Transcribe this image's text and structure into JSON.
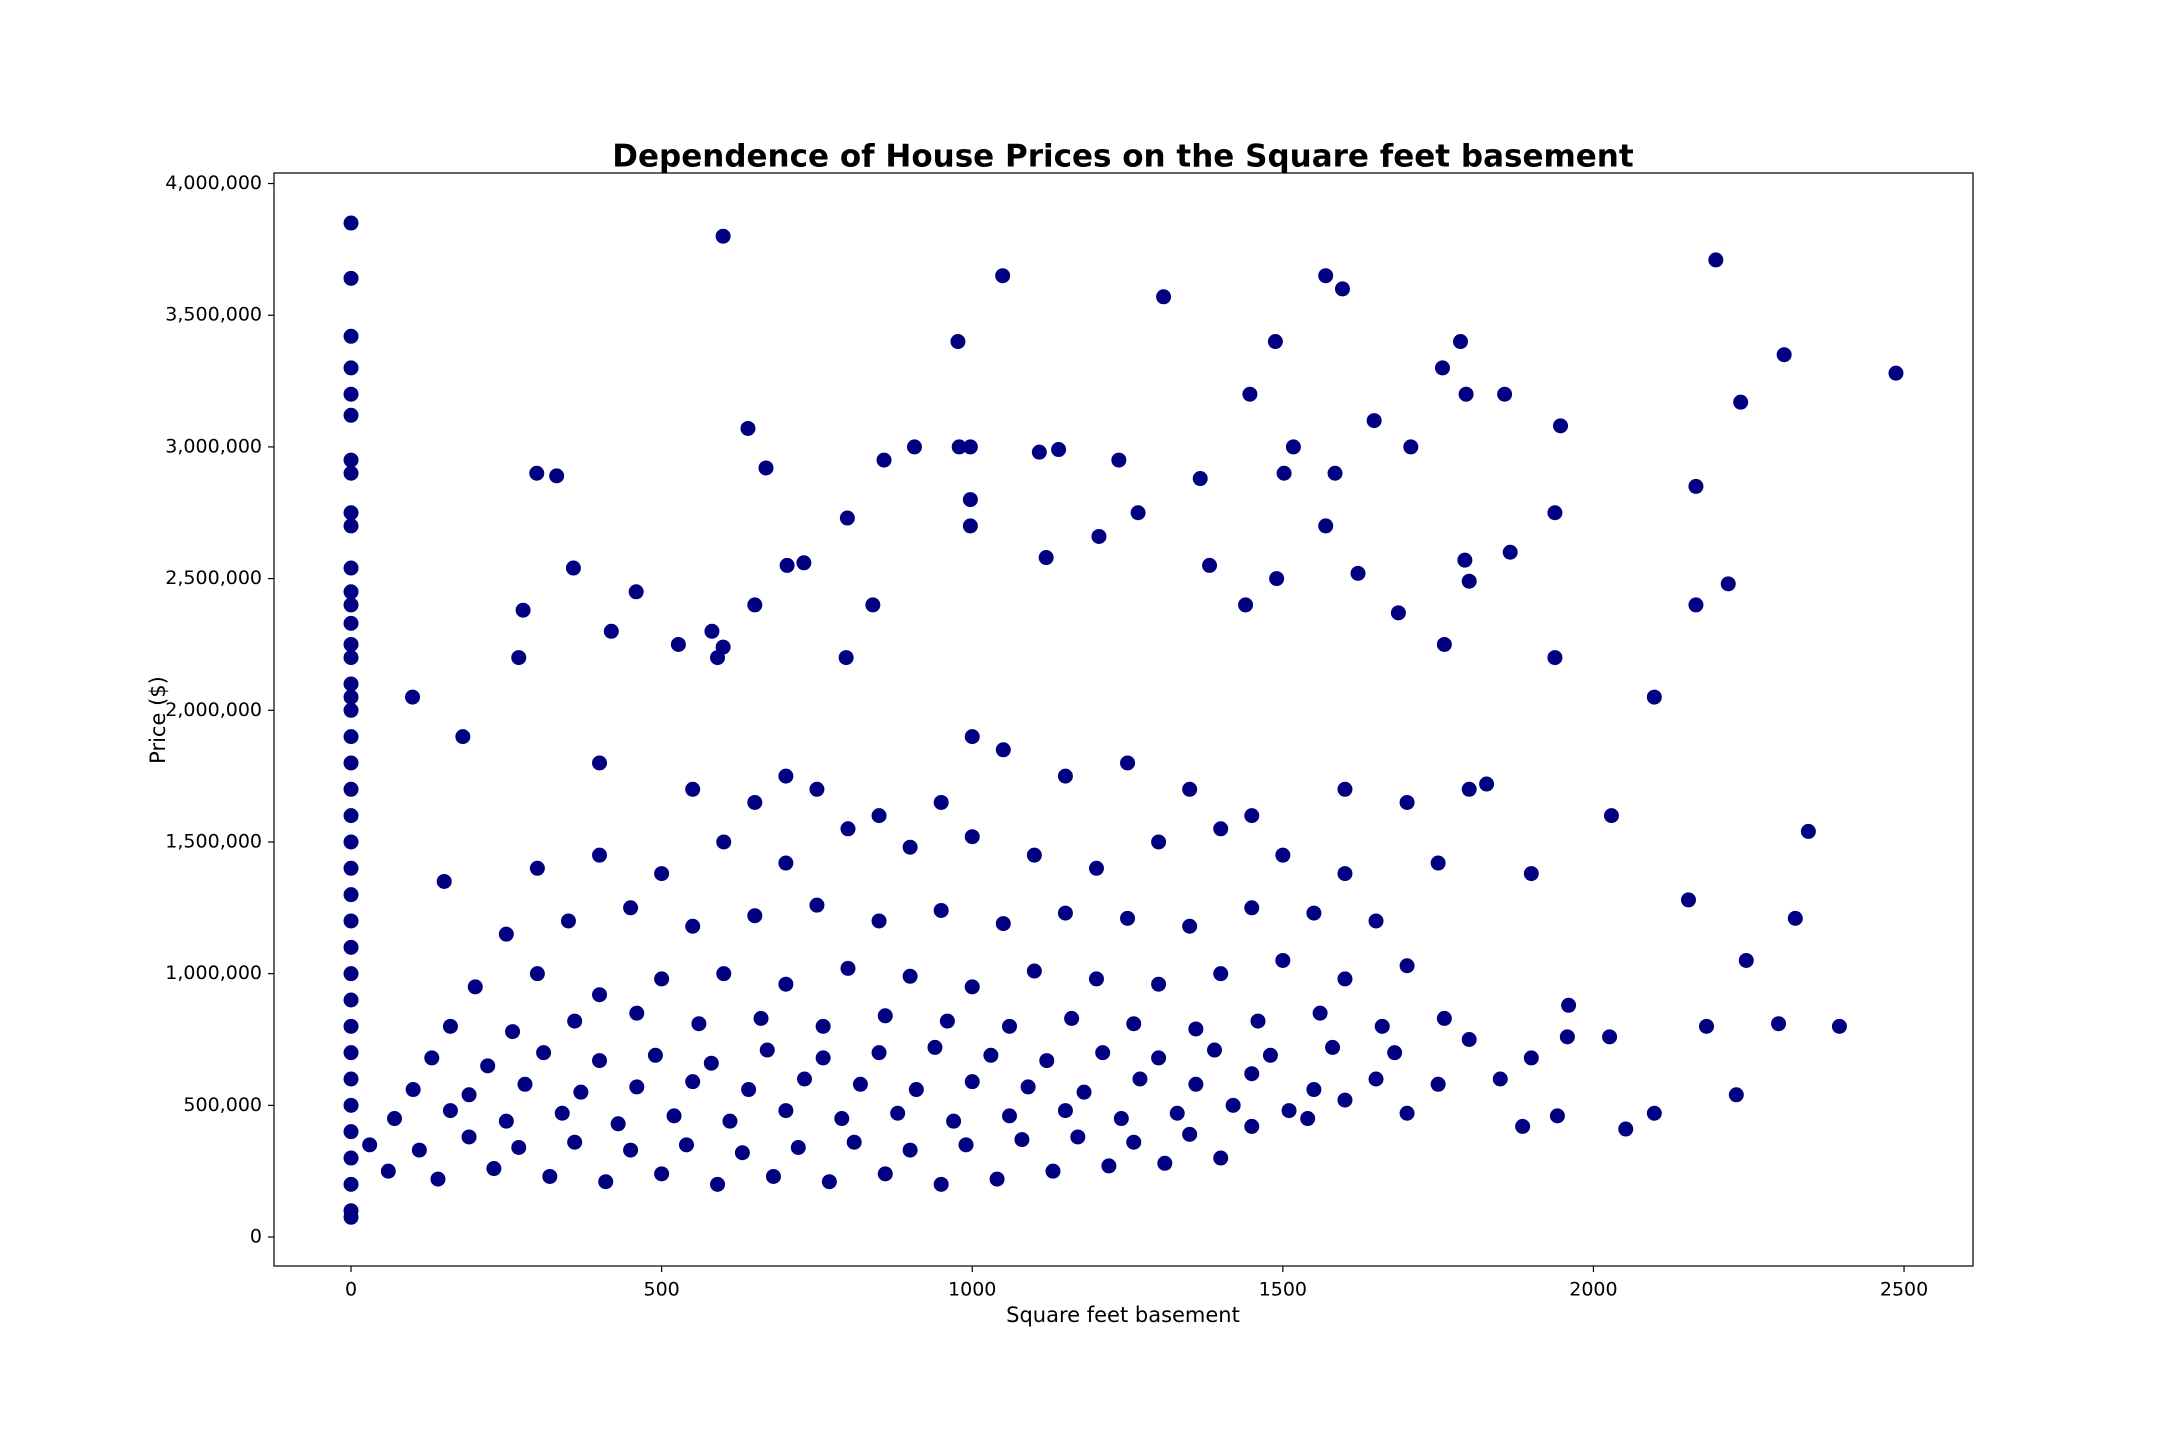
{
  "chart_data": {
    "type": "scatter",
    "title": "Dependence of House Prices on the Square feet basement",
    "x_label": "Square feet basement",
    "y_label": "Price ($)",
    "xlim": [
      -124,
      2611
    ],
    "ylim": [
      -110000,
      4040000
    ],
    "xticks": [
      0,
      500,
      1000,
      1500,
      2000,
      2500
    ],
    "yticks": [
      0,
      {
        "value": 500000,
        "label": "500,000"
      },
      {
        "value": 1000000,
        "label": "1,000,000"
      },
      {
        "value": 1500000,
        "label": "1,500,000"
      },
      {
        "value": 2000000,
        "label": "2,000,000"
      },
      {
        "value": 2500000,
        "label": "2,500,000"
      },
      {
        "value": 3000000,
        "label": "3,000,000"
      },
      {
        "value": 3500000,
        "label": "3,500,000"
      },
      {
        "value": 4000000,
        "label": "4,000,000"
      }
    ],
    "grid": false,
    "series": [
      {
        "color": "#000080",
        "x": [
          0,
          0,
          0,
          0,
          0,
          0,
          0,
          0,
          0,
          0,
          0,
          0,
          0,
          0,
          0,
          0,
          0,
          0,
          0,
          0,
          0,
          0,
          0,
          0,
          0,
          0,
          0,
          0,
          0,
          0,
          0,
          0,
          0,
          0,
          0,
          0,
          0,
          0,
          0
        ],
        "values": [
          3850000,
          3640000,
          3420000,
          3300000,
          3200000,
          3120000,
          2950000,
          2900000,
          2750000,
          2700000,
          2540000,
          2450000,
          2400000,
          2330000,
          2250000,
          2200000,
          2100000,
          2050000,
          2000000,
          1900000,
          1800000,
          1700000,
          1600000,
          1500000,
          1400000,
          1300000,
          1200000,
          1100000,
          1000000,
          900000,
          800000,
          700000,
          600000,
          500000,
          400000,
          300000,
          200000,
          100000,
          75000
        ]
      },
      {
        "color": "#000080",
        "x": [
          599,
          1049,
          1308,
          1569,
          1596,
          2197,
          2307,
          2487,
          2237,
          2346,
          2396,
          2298,
          2246,
          2325,
          2217,
          2165,
          2165,
          2098,
          1947,
          1938,
          1938,
          1857,
          1795,
          1786,
          1757,
          1447,
          1488,
          1647,
          1584,
          1517,
          1502,
          1706,
          299,
          331,
          639,
          668,
          907,
          979,
          997,
          977,
          1139,
          1108,
          1236,
          1367,
          997,
          997,
          858,
          799,
          358,
          277,
          459,
          419,
          270,
          99,
          180,
          527,
          599,
          581,
          590,
          729,
          702,
          650,
          840,
          797,
          1119,
          1204,
          1267,
          1382,
          1440,
          1490,
          1569,
          1621,
          1686,
          1866,
          1793,
          1800,
          1760,
          1828,
          2029,
          2153,
          2182,
          2230,
          2098,
          2052,
          2026,
          1958,
          1886,
          1942
        ],
        "values": [
          3800000,
          3650000,
          3570000,
          3650000,
          3600000,
          3710000,
          3350000,
          3280000,
          3170000,
          1540000,
          800000,
          810000,
          1050000,
          1210000,
          2480000,
          2850000,
          2400000,
          2050000,
          3080000,
          2750000,
          2200000,
          3200000,
          3200000,
          3400000,
          3300000,
          3200000,
          3400000,
          3100000,
          2900000,
          3000000,
          2900000,
          3000000,
          2900000,
          2890000,
          3070000,
          2920000,
          3000000,
          3000000,
          3000000,
          3400000,
          2990000,
          2980000,
          2950000,
          2880000,
          2800000,
          2700000,
          2950000,
          2730000,
          2540000,
          2380000,
          2450000,
          2300000,
          2200000,
          2050000,
          1900000,
          2250000,
          2240000,
          2300000,
          2200000,
          2560000,
          2550000,
          2400000,
          2400000,
          2200000,
          2580000,
          2660000,
          2750000,
          2550000,
          2400000,
          2500000,
          2700000,
          2520000,
          2370000,
          2600000,
          2570000,
          2490000,
          2250000,
          1720000,
          1600000,
          1280000,
          800000,
          540000,
          470000,
          410000,
          760000,
          760000,
          420000,
          460000
        ]
      },
      {
        "color": "#000080",
        "x": [
          60,
          140,
          230,
          320,
          410,
          500,
          590,
          680,
          770,
          860,
          950,
          1040,
          1130,
          1220,
          1310,
          1400
        ],
        "values": [
          250000,
          220000,
          260000,
          230000,
          210000,
          240000,
          200000,
          230000,
          210000,
          240000,
          200000,
          220000,
          250000,
          270000,
          280000,
          300000
        ]
      },
      {
        "color": "#000080",
        "x": [
          30,
          110,
          190,
          270,
          360,
          450,
          540,
          630,
          720,
          810,
          900,
          990,
          1080,
          1170,
          1260,
          1350,
          1450,
          1540
        ],
        "values": [
          350000,
          330000,
          380000,
          340000,
          360000,
          330000,
          350000,
          320000,
          340000,
          360000,
          330000,
          350000,
          370000,
          380000,
          360000,
          390000,
          420000,
          450000
        ]
      },
      {
        "color": "#000080",
        "x": [
          70,
          160,
          250,
          340,
          430,
          520,
          610,
          700,
          790,
          880,
          970,
          1060,
          1150,
          1240,
          1330,
          1420,
          1510,
          1600,
          1700
        ],
        "values": [
          450000,
          480000,
          440000,
          470000,
          430000,
          460000,
          440000,
          480000,
          450000,
          470000,
          440000,
          460000,
          480000,
          450000,
          470000,
          500000,
          480000,
          520000,
          470000
        ]
      },
      {
        "color": "#000080",
        "x": [
          100,
          190,
          280,
          370,
          460,
          550,
          640,
          730,
          820,
          910,
          1000,
          1090,
          1180,
          1270,
          1360,
          1450,
          1550,
          1650,
          1750,
          1850
        ],
        "values": [
          560000,
          540000,
          580000,
          550000,
          570000,
          590000,
          560000,
          600000,
          580000,
          560000,
          590000,
          570000,
          550000,
          600000,
          580000,
          620000,
          560000,
          600000,
          580000,
          600000
        ]
      },
      {
        "color": "#000080",
        "x": [
          130,
          220,
          310,
          400,
          490,
          580,
          670,
          760,
          850,
          940,
          1030,
          1120,
          1210,
          1300,
          1390,
          1480,
          1580,
          1680,
          1800,
          1900
        ],
        "values": [
          680000,
          650000,
          700000,
          670000,
          690000,
          660000,
          710000,
          680000,
          700000,
          720000,
          690000,
          670000,
          700000,
          680000,
          710000,
          690000,
          720000,
          700000,
          750000,
          680000
        ]
      },
      {
        "color": "#000080",
        "x": [
          160,
          260,
          360,
          460,
          560,
          660,
          760,
          860,
          960,
          1060,
          1160,
          1260,
          1360,
          1460,
          1560,
          1660,
          1760,
          1960
        ],
        "values": [
          800000,
          780000,
          820000,
          850000,
          810000,
          830000,
          800000,
          840000,
          820000,
          800000,
          830000,
          810000,
          790000,
          820000,
          850000,
          800000,
          830000,
          880000
        ]
      },
      {
        "color": "#000080",
        "x": [
          200,
          300,
          400,
          500,
          600,
          700,
          800,
          900,
          1000,
          1100,
          1200,
          1300,
          1400,
          1500,
          1600,
          1700
        ],
        "values": [
          950000,
          1000000,
          920000,
          980000,
          1000000,
          960000,
          1020000,
          990000,
          950000,
          1010000,
          980000,
          960000,
          1000000,
          1050000,
          980000,
          1030000
        ]
      },
      {
        "color": "#000080",
        "x": [
          250,
          350,
          450,
          550,
          650,
          750,
          850,
          950,
          1050,
          1150,
          1250,
          1350,
          1450,
          1550,
          1650
        ],
        "values": [
          1150000,
          1200000,
          1250000,
          1180000,
          1220000,
          1260000,
          1200000,
          1240000,
          1190000,
          1230000,
          1210000,
          1180000,
          1250000,
          1230000,
          1200000
        ]
      },
      {
        "color": "#000080",
        "x": [
          150,
          300,
          400,
          500,
          600,
          700,
          800,
          900,
          1000,
          1100,
          1200,
          1300,
          1400,
          1500,
          1600,
          1750,
          1900
        ],
        "values": [
          1350000,
          1400000,
          1450000,
          1380000,
          1500000,
          1420000,
          1550000,
          1480000,
          1520000,
          1450000,
          1400000,
          1500000,
          1550000,
          1450000,
          1380000,
          1420000,
          1380000
        ]
      },
      {
        "color": "#000080",
        "x": [
          400,
          550,
          650,
          700,
          750,
          850,
          950,
          1000,
          1050,
          1150,
          1250,
          1350,
          1450,
          1600,
          1700,
          1800
        ],
        "values": [
          1800000,
          1700000,
          1650000,
          1750000,
          1700000,
          1600000,
          1650000,
          1900000,
          1850000,
          1750000,
          1800000,
          1700000,
          1600000,
          1700000,
          1650000,
          1700000
        ]
      }
    ]
  }
}
